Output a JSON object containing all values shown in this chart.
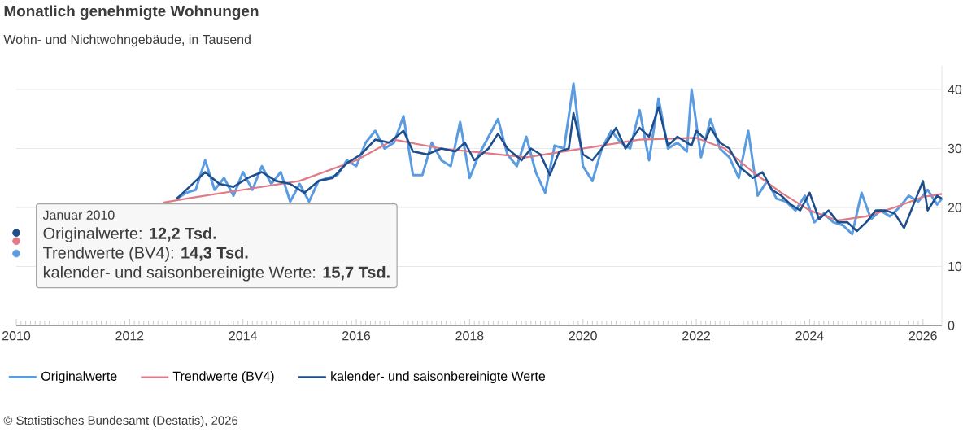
{
  "chart_data": {
    "type": "line",
    "title": "Monatlich genehmigte Wohnungen",
    "subtitle": "Wohn- und Nichtwohngebäude, in Tausend",
    "annotations": [
      "Januar 2010",
      "Originalwerte: **12,2 Tsd.**",
      "Trendwerte (BV4): **14,3 Tsd.**",
      "kalender- und saisonbereinigte Werte: **15,7 Tsd.**",
      "© Statistisches Bundesamt (Destatis), 2026"
    ],
    "xlim": [
      "2010-01",
      "2026-05"
    ],
    "xticks": [
      "2010",
      "2012",
      "2014",
      "2016",
      "2018",
      "2020",
      "2022",
      "2024",
      "2026"
    ],
    "ylim": [
      0,
      44
    ],
    "yticks": [
      0,
      10,
      20,
      30,
      40
    ],
    "grid": "y",
    "legend": "bottom",
    "marker": "none",
    "line_style": "solid",
    "series": [
      {
        "name": "Originalwerte",
        "color": "#5b9bdf",
        "x": [
          "2010-01",
          "2010-02",
          "2012-11",
          "2013-01",
          "2013-03",
          "2013-05",
          "2013-07",
          "2013-09",
          "2013-11",
          "2014-01",
          "2014-03",
          "2014-05",
          "2014-07",
          "2014-09",
          "2014-11",
          "2015-01",
          "2015-03",
          "2015-05",
          "2015-07",
          "2015-09",
          "2015-11",
          "2016-01",
          "2016-03",
          "2016-05",
          "2016-07",
          "2016-09",
          "2016-11",
          "2017-01",
          "2017-03",
          "2017-05",
          "2017-07",
          "2017-09",
          "2017-11",
          "2018-01",
          "2018-03",
          "2018-05",
          "2018-07",
          "2018-09",
          "2018-11",
          "2019-01",
          "2019-03",
          "2019-05",
          "2019-07",
          "2019-09",
          "2019-11",
          "2020-01",
          "2020-03",
          "2020-05",
          "2020-07",
          "2020-09",
          "2020-11",
          "2021-01",
          "2021-03",
          "2021-05",
          "2021-07",
          "2021-09",
          "2021-11",
          "2021-12",
          "2022-02",
          "2022-04",
          "2022-06",
          "2022-08",
          "2022-10",
          "2022-12",
          "2023-02",
          "2023-04",
          "2023-06",
          "2023-08",
          "2023-10",
          "2023-12",
          "2024-02",
          "2024-04",
          "2024-06",
          "2024-08",
          "2024-10",
          "2024-12",
          "2025-02",
          "2025-04",
          "2025-06",
          "2025-08",
          "2025-10",
          "2025-12",
          "2026-02",
          "2026-04",
          "2026-05"
        ],
        "values": [
          12.2,
          null,
          21.5,
          22.5,
          23,
          28,
          23,
          25,
          22,
          26,
          23,
          27,
          24,
          26,
          21,
          24,
          21,
          24.5,
          25,
          25.5,
          28,
          27,
          31,
          33,
          30,
          31,
          35.5,
          25.5,
          25.5,
          31,
          28,
          27,
          34.5,
          25,
          29,
          32,
          35,
          29,
          27,
          32,
          26,
          22.5,
          30.5,
          30,
          41,
          27,
          24.5,
          30,
          33,
          31,
          30,
          36.5,
          28,
          38.5,
          30,
          31,
          29.5,
          40,
          28.5,
          35,
          30,
          28.5,
          25,
          33,
          22,
          24.5,
          21.5,
          21,
          19.5,
          22,
          17.5,
          19,
          17.5,
          17,
          15.5,
          22.5,
          18,
          19.5,
          18.5,
          20,
          22,
          21,
          23,
          20.5,
          21.5
        ]
      },
      {
        "name": "Trendwerte (BV4)",
        "color": "#e07a86",
        "x": [
          "2010-01",
          "2010-02",
          "2012-08",
          "2013-01",
          "2014-01",
          "2015-01",
          "2016-01",
          "2016-09",
          "2017-07",
          "2018-01",
          "2019-01",
          "2020-01",
          "2021-01",
          "2022-01",
          "2022-07",
          "2023-01",
          "2023-07",
          "2024-01",
          "2024-07",
          "2025-01",
          "2025-07",
          "2026-01",
          "2026-05"
        ],
        "values": [
          14.3,
          null,
          20.8,
          21.5,
          23,
          24.5,
          28,
          31.5,
          30,
          29.5,
          28.5,
          30,
          31.5,
          31.8,
          30,
          26,
          22.5,
          19.5,
          17.8,
          18.5,
          20,
          21.8,
          22.3
        ]
      },
      {
        "name": "kalender- und saisonbereinigte Werte",
        "color": "#1f4e8c",
        "x": [
          "2010-01",
          "2010-02",
          "2012-11",
          "2013-03",
          "2013-05",
          "2013-08",
          "2013-11",
          "2014-02",
          "2014-05",
          "2014-08",
          "2014-11",
          "2015-02",
          "2015-05",
          "2015-08",
          "2015-11",
          "2016-02",
          "2016-05",
          "2016-08",
          "2016-11",
          "2017-01",
          "2017-04",
          "2017-07",
          "2017-10",
          "2017-12",
          "2018-02",
          "2018-05",
          "2018-07",
          "2018-09",
          "2018-12",
          "2019-02",
          "2019-04",
          "2019-06",
          "2019-08",
          "2019-10",
          "2019-11",
          "2020-01",
          "2020-03",
          "2020-06",
          "2020-08",
          "2020-10",
          "2021-01",
          "2021-03",
          "2021-05",
          "2021-07",
          "2021-09",
          "2021-12",
          "2022-01",
          "2022-03",
          "2022-04",
          "2022-06",
          "2022-08",
          "2022-10",
          "2023-01",
          "2023-03",
          "2023-05",
          "2023-07",
          "2023-09",
          "2023-11",
          "2024-01",
          "2024-03",
          "2024-05",
          "2024-07",
          "2024-09",
          "2024-11",
          "2025-01",
          "2025-03",
          "2025-05",
          "2025-07",
          "2025-09",
          "2025-11",
          "2026-01",
          "2026-02",
          "2026-04",
          "2026-05"
        ],
        "values": [
          15.7,
          null,
          21.5,
          24.5,
          26,
          24,
          23.5,
          25,
          26,
          24.5,
          24,
          22.5,
          24.5,
          25,
          27.5,
          29,
          31.5,
          31,
          33,
          29.5,
          29,
          30,
          29.5,
          31,
          28,
          30,
          32.5,
          30,
          28,
          30,
          29,
          25.5,
          29.5,
          30,
          36,
          29,
          28,
          31,
          33.5,
          30,
          33.5,
          32,
          37,
          30.5,
          32,
          30.5,
          33,
          31.5,
          33.5,
          31,
          30,
          27,
          25,
          26,
          23,
          22,
          20.5,
          19.5,
          22.5,
          18,
          19.5,
          17.5,
          17.5,
          16,
          17.5,
          19.5,
          19.5,
          19,
          16.5,
          20.5,
          24.5,
          19.5,
          22,
          21.5
        ]
      }
    ]
  }
}
